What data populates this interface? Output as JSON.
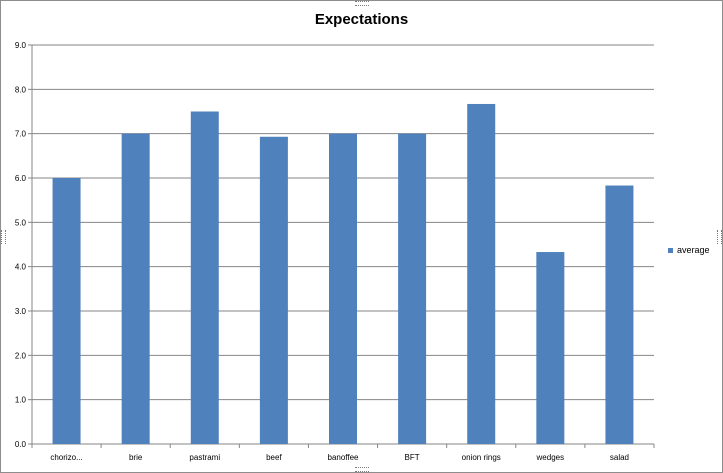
{
  "chart_data": {
    "type": "bar",
    "title": "Expectations",
    "xlabel": "",
    "ylabel": "",
    "categories": [
      "chorizo...",
      "brie",
      "pastrami",
      "beef",
      "banoffee",
      "BFT",
      "onion rings",
      "wedges",
      "salad"
    ],
    "series": [
      {
        "name": "average",
        "values": [
          6.0,
          7.0,
          7.5,
          6.93,
          7.0,
          7.0,
          7.67,
          4.33,
          5.83
        ]
      }
    ],
    "ylim": [
      0,
      9
    ],
    "yticks": [
      "0.0",
      "1.0",
      "2.0",
      "3.0",
      "4.0",
      "5.0",
      "6.0",
      "7.0",
      "8.0",
      "9.0"
    ],
    "grid": true,
    "legend_position": "right",
    "colors": {
      "bar": "#4f81bd",
      "grid": "#868686",
      "axis": "#868686",
      "text": "#000000"
    }
  }
}
